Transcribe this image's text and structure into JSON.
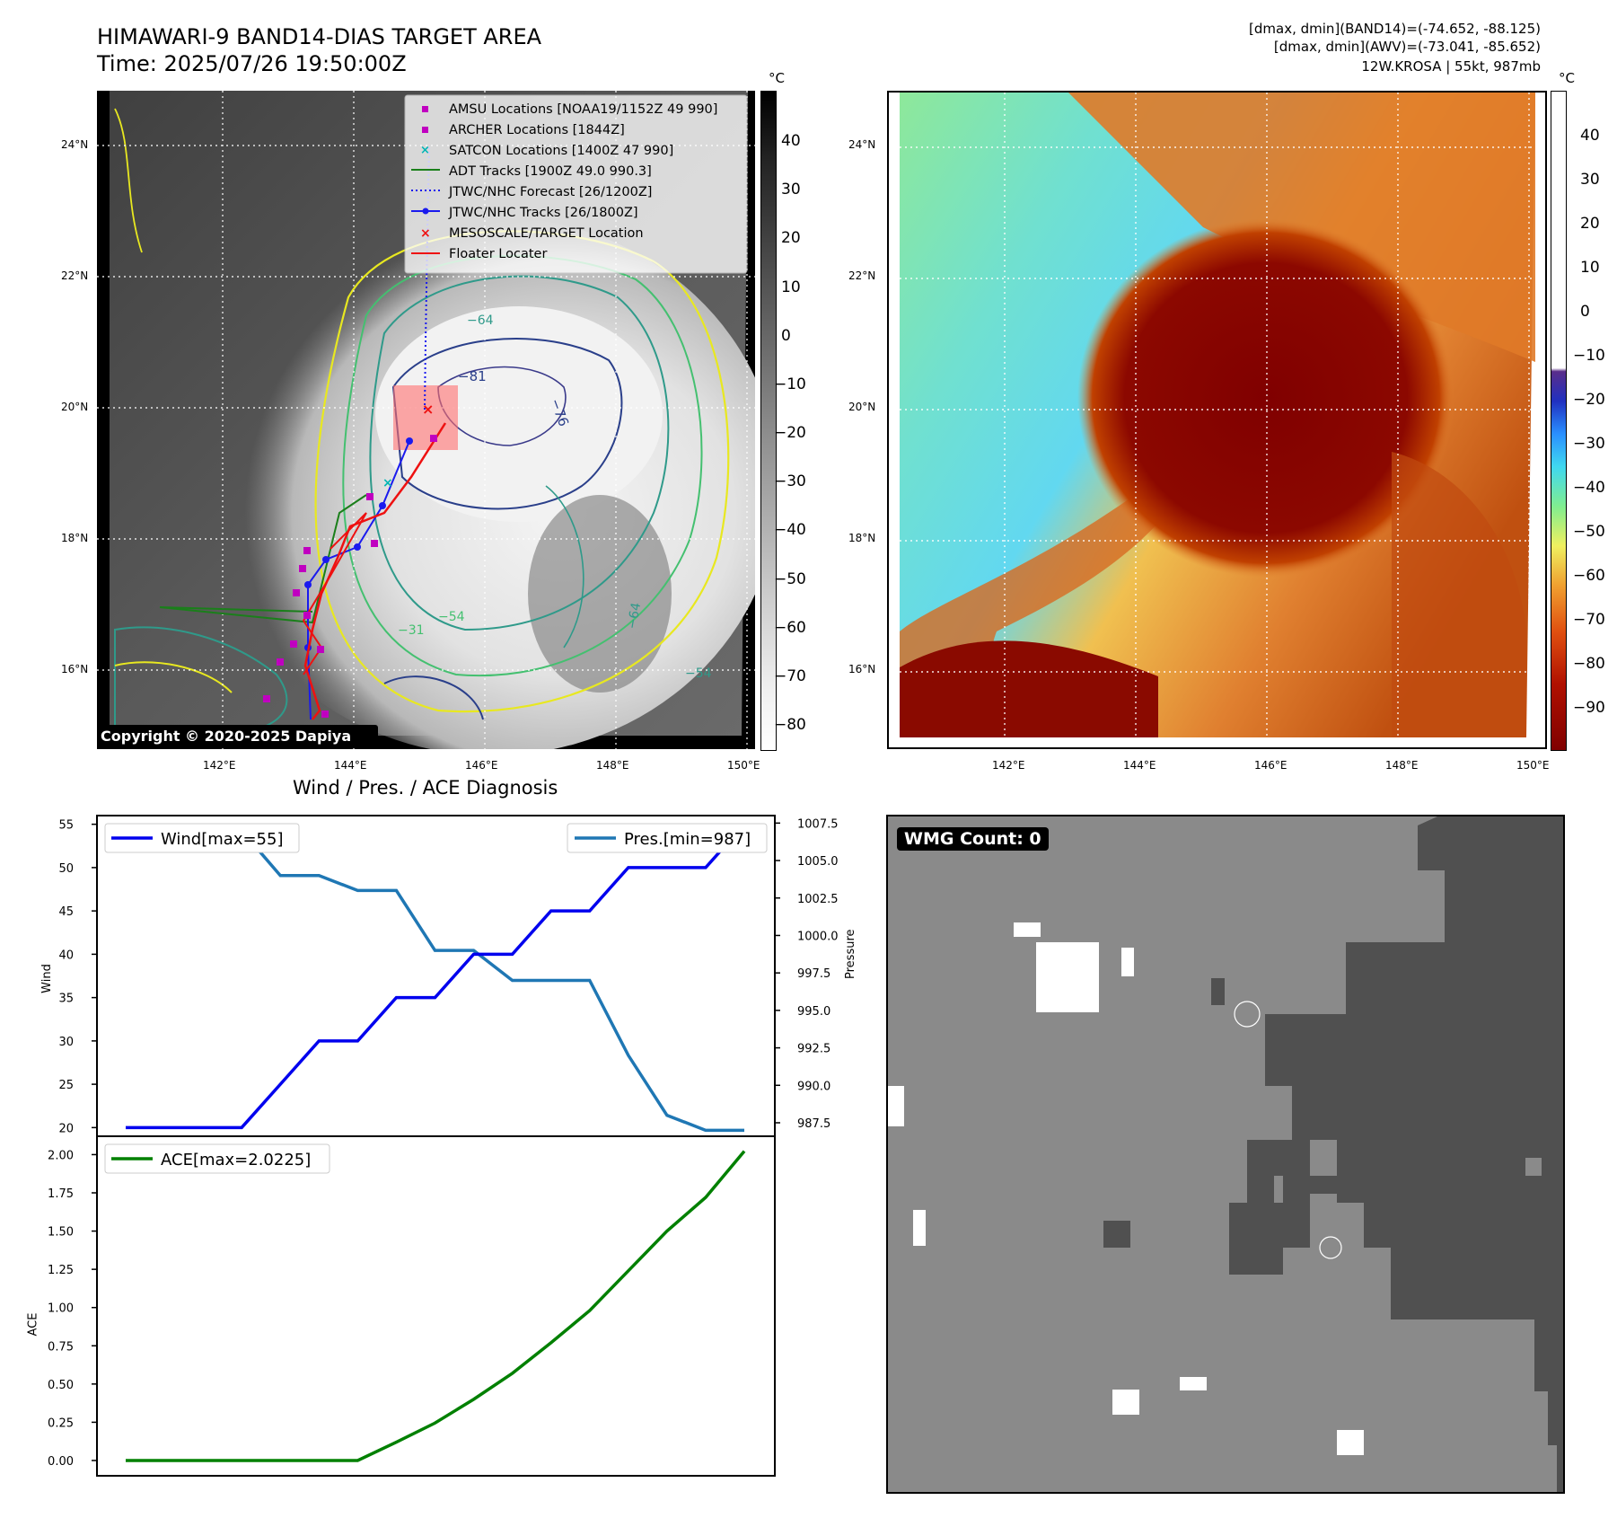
{
  "header": {
    "title_line1": "HIMAWARI-9 BAND14-DIAS TARGET AREA",
    "title_line2": "Time: 2025/07/26 19:50:00Z",
    "info_line1": "[dmax, dmin](BAND14)=(-74.652, -88.125)",
    "info_line2": "[dmax, dmin](AWV)=(-73.041, -85.652)",
    "info_line3": "12W.KROSA | 55kt, 987mb"
  },
  "map_axes": {
    "lat_labels": [
      "24°N",
      "22°N",
      "20°N",
      "18°N",
      "16°N"
    ],
    "lon_labels": [
      "142°E",
      "144°E",
      "146°E",
      "148°E",
      "150°E"
    ]
  },
  "ir_panel": {
    "unit": "°C",
    "colorbar_ticks": [
      "40",
      "30",
      "20",
      "10",
      "0",
      "−10",
      "−20",
      "−30",
      "−40",
      "−50",
      "−60",
      "−70",
      "−80"
    ],
    "copyright": "Copyright © 2020-2025 Dapiya",
    "contour_labels": [
      "−81",
      "−76",
      "−64",
      "−31",
      "−54",
      "−64",
      "−54"
    ],
    "legend": [
      {
        "label": "AMSU Locations [NOAA19/1152Z 49 990]",
        "marker": "square",
        "color": "#c000c0"
      },
      {
        "label": "ARCHER Locations [1844Z]",
        "marker": "square",
        "color": "#c000c0"
      },
      {
        "label": "SATCON Locations [1400Z 47 990]",
        "marker": "x",
        "color": "#00b5b5"
      },
      {
        "label": "ADT Tracks [1900Z 49.0 990.3]",
        "marker": "line",
        "color": "#1a7f1a"
      },
      {
        "label": "JTWC/NHC Forecast [26/1200Z]",
        "marker": "dotted",
        "color": "#1a1aee"
      },
      {
        "label": "JTWC/NHC Tracks [26/1800Z]",
        "marker": "line-dot",
        "color": "#1a1aee"
      },
      {
        "label": "MESOSCALE/TARGET Location",
        "marker": "x",
        "color": "#ee1111"
      },
      {
        "label": "Floater Locater",
        "marker": "line",
        "color": "#ee1111"
      }
    ]
  },
  "wv_panel": {
    "unit": "°C",
    "colorbar_ticks": [
      "40",
      "30",
      "20",
      "10",
      "0",
      "−10",
      "−20",
      "−30",
      "−40",
      "−50",
      "−60",
      "−70",
      "−80",
      "−90"
    ]
  },
  "wmg_panel": {
    "badge": "WMG Count: 0"
  },
  "colors": {
    "wind": "#0000ee",
    "pressure": "#1f77b4",
    "ace": "#008000",
    "land_map_bg": "#4a4a4a",
    "wv_dark": "#800000"
  },
  "chart_data": [
    {
      "type": "line",
      "title": "Wind / Pres. / ACE Diagnosis",
      "ylabel": "Wind",
      "y2label": "Pressure",
      "ylim": [
        19,
        56
      ],
      "y2lim": [
        986.6,
        1008.0
      ],
      "yticks": [
        "20",
        "25",
        "30",
        "35",
        "40",
        "45",
        "50",
        "55"
      ],
      "y2ticks": [
        "987.5",
        "990.0",
        "992.5",
        "995.0",
        "997.5",
        "1000.0",
        "1002.5",
        "1005.0",
        "1007.5"
      ],
      "x_index": [
        0,
        1,
        2,
        3,
        4,
        5,
        6,
        7,
        8,
        9,
        10,
        11,
        12,
        13,
        14,
        15,
        16
      ],
      "series": [
        {
          "name": "Wind[max=55]",
          "axis": "left",
          "values": [
            20,
            20,
            20,
            20,
            25,
            30,
            30,
            35,
            35,
            40,
            40,
            45,
            45,
            50,
            50,
            50,
            55
          ]
        },
        {
          "name": "Pres.[min=987]",
          "axis": "right",
          "values": [
            1007,
            1007,
            1007,
            1007,
            1004,
            1004,
            1003,
            1003,
            999,
            999,
            997,
            997,
            997,
            992,
            988,
            987,
            987
          ]
        }
      ]
    },
    {
      "type": "line",
      "ylabel": "ACE",
      "ylim": [
        -0.1,
        2.12
      ],
      "yticks": [
        "0.00",
        "0.25",
        "0.50",
        "0.75",
        "1.00",
        "1.25",
        "1.50",
        "1.75",
        "2.00"
      ],
      "x_index": [
        0,
        1,
        2,
        3,
        4,
        5,
        6,
        7,
        8,
        9,
        10,
        11,
        12,
        13,
        14,
        15,
        16
      ],
      "series": [
        {
          "name": "ACE[max=2.0225]",
          "values": [
            0,
            0,
            0,
            0,
            0,
            0,
            0,
            0.12,
            0.245,
            0.4,
            0.57,
            0.77,
            0.98,
            1.24,
            1.5,
            1.72,
            2.0225
          ]
        }
      ]
    }
  ]
}
